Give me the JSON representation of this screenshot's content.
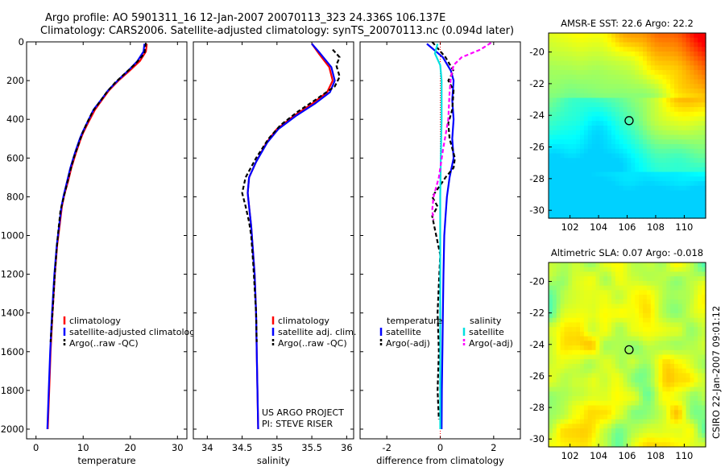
{
  "header": {
    "line1": "Argo profile: AO 5901311_16 12-Jan-2007 20070113_323 24.336S 106.137E",
    "line2": "Climatology: CARS2006. Satellite-adjusted climatology: synTS_20070113.nc (0.094d later)"
  },
  "side_text": "CSIRO 22-Jan-2007 09:01:12",
  "colors": {
    "climatology": "#ff0000",
    "satellite": "#0000ff",
    "argo": "#000000",
    "salinity_satellite": "#00e0e0",
    "salinity_argo": "#ff00ff"
  },
  "chart_data": [
    {
      "type": "line",
      "panel": "temperature",
      "xlabel": "temperature",
      "xlim": [
        -2,
        32
      ],
      "ylim": [
        2050,
        0
      ],
      "xticks": [
        "0",
        "10",
        "20",
        "30"
      ],
      "yticks": [
        "0",
        "200",
        "400",
        "600",
        "800",
        "1000",
        "1200",
        "1400",
        "1600",
        "1800",
        "2000"
      ],
      "legend_loc": "lower-right",
      "series": [
        {
          "name": "climatology",
          "color": "#ff0000",
          "dash": "",
          "points": [
            [
              23.5,
              10
            ],
            [
              23.3,
              50
            ],
            [
              22,
              100
            ],
            [
              19.8,
              150
            ],
            [
              17.5,
              200
            ],
            [
              15.5,
              250
            ],
            [
              14,
              300
            ],
            [
              12.5,
              350
            ],
            [
              11,
              420
            ],
            [
              10,
              470
            ],
            [
              9.5,
              500
            ],
            [
              8.5,
              570
            ],
            [
              7.5,
              650
            ],
            [
              6.8,
              720
            ],
            [
              6,
              790
            ],
            [
              5.5,
              850
            ],
            [
              5,
              950
            ],
            [
              4.5,
              1050
            ],
            [
              4,
              1200
            ],
            [
              3.5,
              1400
            ],
            [
              3.1,
              1600
            ],
            [
              2.8,
              1800
            ],
            [
              2.5,
              2000
            ]
          ]
        },
        {
          "name": "satellite-adjusted climatology",
          "color": "#0000ff",
          "dash": "",
          "points": [
            [
              23,
              10
            ],
            [
              22.8,
              50
            ],
            [
              21.5,
              100
            ],
            [
              19.5,
              150
            ],
            [
              17.3,
              200
            ],
            [
              15.3,
              250
            ],
            [
              13.8,
              300
            ],
            [
              12.2,
              350
            ],
            [
              10.8,
              420
            ],
            [
              9.8,
              470
            ],
            [
              9.3,
              500
            ],
            [
              8.3,
              570
            ],
            [
              7.3,
              650
            ],
            [
              6.6,
              720
            ],
            [
              5.9,
              790
            ],
            [
              5.4,
              850
            ],
            [
              4.9,
              950
            ],
            [
              4.4,
              1050
            ],
            [
              3.9,
              1200
            ],
            [
              3.4,
              1400
            ],
            [
              3,
              1600
            ],
            [
              2.7,
              1800
            ],
            [
              2.4,
              2000
            ]
          ]
        },
        {
          "name": "Argo(..raw -QC)",
          "color": "#000000",
          "dash": "5,3",
          "points": [
            [
              23.3,
              5
            ],
            [
              23,
              60
            ],
            [
              21.2,
              110
            ],
            [
              19,
              160
            ],
            [
              16.8,
              210
            ],
            [
              15,
              260
            ],
            [
              13.5,
              310
            ],
            [
              12,
              360
            ],
            [
              10.6,
              430
            ],
            [
              9.7,
              480
            ],
            [
              9,
              530
            ],
            [
              8,
              600
            ],
            [
              7.1,
              680
            ],
            [
              6.3,
              760
            ],
            [
              5.6,
              830
            ],
            [
              5.2,
              870
            ],
            [
              4.8,
              960
            ],
            [
              4.4,
              1060
            ],
            [
              4,
              1200
            ],
            [
              3.5,
              1400
            ],
            [
              3.1,
              1550
            ]
          ]
        }
      ],
      "legend": [
        "climatology",
        "satellite-adjusted climatology",
        "Argo(..raw -QC)"
      ]
    },
    {
      "type": "line",
      "panel": "salinity",
      "xlabel": "salinity",
      "xlim": [
        33.8,
        36.1
      ],
      "ylim": [
        2050,
        0
      ],
      "xticks": [
        "34",
        "34.5",
        "35",
        "35.5",
        "36"
      ],
      "legend_loc": "lower-right",
      "annotation": [
        "US ARGO PROJECT",
        "PI: STEVE RISER"
      ],
      "series": [
        {
          "name": "climatology",
          "color": "#ff0000",
          "dash": "",
          "points": [
            [
              35.5,
              10
            ],
            [
              35.6,
              60
            ],
            [
              35.75,
              130
            ],
            [
              35.8,
              200
            ],
            [
              35.72,
              260
            ],
            [
              35.5,
              320
            ],
            [
              35.25,
              380
            ],
            [
              35,
              450
            ],
            [
              34.85,
              520
            ],
            [
              34.7,
              620
            ],
            [
              34.6,
              700
            ],
            [
              34.58,
              780
            ],
            [
              34.6,
              850
            ],
            [
              34.63,
              950
            ],
            [
              34.65,
              1050
            ],
            [
              34.68,
              1200
            ],
            [
              34.7,
              1400
            ],
            [
              34.71,
              1600
            ],
            [
              34.72,
              1800
            ],
            [
              34.73,
              2000
            ]
          ]
        },
        {
          "name": "satellite adj. clim.",
          "color": "#0000ff",
          "dash": "",
          "points": [
            [
              35.5,
              10
            ],
            [
              35.62,
              60
            ],
            [
              35.78,
              130
            ],
            [
              35.83,
              200
            ],
            [
              35.76,
              260
            ],
            [
              35.54,
              320
            ],
            [
              35.28,
              380
            ],
            [
              35.02,
              450
            ],
            [
              34.86,
              520
            ],
            [
              34.7,
              620
            ],
            [
              34.6,
              700
            ],
            [
              34.58,
              780
            ],
            [
              34.6,
              850
            ],
            [
              34.63,
              950
            ],
            [
              34.65,
              1050
            ],
            [
              34.68,
              1200
            ],
            [
              34.7,
              1400
            ],
            [
              34.71,
              1600
            ],
            [
              34.72,
              1800
            ],
            [
              34.73,
              2000
            ]
          ]
        },
        {
          "name": "Argo(..raw -QC)",
          "color": "#000000",
          "dash": "5,3",
          "points": [
            [
              35.8,
              40
            ],
            [
              35.9,
              80
            ],
            [
              35.85,
              120
            ],
            [
              35.9,
              180
            ],
            [
              35.83,
              230
            ],
            [
              35.55,
              300
            ],
            [
              35.3,
              360
            ],
            [
              35.05,
              430
            ],
            [
              34.88,
              500
            ],
            [
              34.7,
              600
            ],
            [
              34.55,
              700
            ],
            [
              34.5,
              780
            ],
            [
              34.55,
              850
            ],
            [
              34.6,
              930
            ],
            [
              34.63,
              1000
            ],
            [
              34.66,
              1150
            ],
            [
              34.7,
              1400
            ],
            [
              34.71,
              1550
            ]
          ]
        }
      ],
      "legend": [
        "climatology",
        "satellite adj. clim.",
        "Argo(..raw -QC)"
      ]
    },
    {
      "type": "line",
      "panel": "difference",
      "xlabel": "difference from climatology",
      "xlim": [
        -3,
        3
      ],
      "ylim": [
        2050,
        0
      ],
      "xticks": [
        "-2",
        "0",
        "2"
      ],
      "legend_loc": "lower-center",
      "legend_headers": [
        "temperature",
        "salinity"
      ],
      "series": [
        {
          "name": "temperature satellite",
          "color": "#0000ff",
          "dash": "",
          "points": [
            [
              -0.5,
              10
            ],
            [
              0.1,
              80
            ],
            [
              0.4,
              150
            ],
            [
              0.5,
              200
            ],
            [
              0.45,
              300
            ],
            [
              0.5,
              400
            ],
            [
              0.45,
              500
            ],
            [
              0.5,
              600
            ],
            [
              0.35,
              700
            ],
            [
              0.25,
              800
            ],
            [
              0.2,
              900
            ],
            [
              0.15,
              1000
            ],
            [
              0.12,
              1200
            ],
            [
              0.1,
              1400
            ],
            [
              0.08,
              1600
            ],
            [
              0.06,
              1800
            ],
            [
              0.05,
              2000
            ]
          ]
        },
        {
          "name": "temperature Argo(-adj)",
          "color": "#000000",
          "dash": "5,3",
          "points": [
            [
              -0.3,
              0
            ],
            [
              0.2,
              80
            ],
            [
              0.5,
              150
            ],
            [
              0.3,
              200
            ],
            [
              0.5,
              250
            ],
            [
              0.45,
              350
            ],
            [
              0.3,
              420
            ],
            [
              0.35,
              500
            ],
            [
              0.55,
              600
            ],
            [
              0.5,
              650
            ],
            [
              0.2,
              700
            ],
            [
              -0.1,
              760
            ],
            [
              -0.3,
              800
            ],
            [
              -0.1,
              850
            ],
            [
              -0.3,
              900
            ],
            [
              -0.15,
              1000
            ],
            [
              0,
              1100
            ],
            [
              -0.05,
              1250
            ],
            [
              -0.1,
              1400
            ],
            [
              -0.05,
              1600
            ],
            [
              -0.1,
              1800
            ],
            [
              -0.05,
              1950
            ]
          ]
        },
        {
          "name": "salinity satellite",
          "color": "#00e0e0",
          "dash": "",
          "points": [
            [
              -0.1,
              10
            ],
            [
              -0.2,
              60
            ],
            [
              0,
              120
            ],
            [
              0.05,
              200
            ],
            [
              0.05,
              400
            ],
            [
              0.02,
              600
            ],
            [
              0,
              800
            ],
            [
              0,
              1000
            ],
            [
              0,
              1300
            ],
            [
              0,
              1600
            ],
            [
              0,
              2000
            ]
          ]
        },
        {
          "name": "salinity Argo(-adj)",
          "color": "#ff00ff",
          "dash": "5,3",
          "points": [
            [
              1.9,
              5
            ],
            [
              1.5,
              40
            ],
            [
              0.8,
              80
            ],
            [
              0.5,
              120
            ],
            [
              0.4,
              180
            ],
            [
              0.35,
              260
            ],
            [
              0.3,
              400
            ],
            [
              0.1,
              560
            ],
            [
              -0.05,
              700
            ],
            [
              -0.25,
              800
            ],
            [
              -0.3,
              870
            ],
            [
              -0.25,
              920
            ]
          ]
        }
      ],
      "legend": [
        "satellite",
        "Argo(-adj)",
        "satellite",
        "Argo(-adj)"
      ]
    },
    {
      "type": "heatmap",
      "panel": "sst-map",
      "title": "AMSR-E SST: 22.6 Argo: 22.2",
      "xlim": [
        100.5,
        111.5
      ],
      "ylim": [
        -30.5,
        -18.8
      ],
      "xticks": [
        "102",
        "104",
        "106",
        "108",
        "110"
      ],
      "yticks": [
        "-20",
        "-22",
        "-24",
        "-26",
        "-28",
        "-30"
      ],
      "marker": {
        "lon": 106.137,
        "lat": -24.336
      }
    },
    {
      "type": "heatmap",
      "panel": "sla-map",
      "title": "Altimetric SLA: 0.07 Argo: -0.018",
      "xlim": [
        100.5,
        111.5
      ],
      "ylim": [
        -30.5,
        -18.8
      ],
      "xticks": [
        "102",
        "104",
        "106",
        "108",
        "110"
      ],
      "yticks": [
        "-20",
        "-22",
        "-24",
        "-26",
        "-28",
        "-30"
      ],
      "marker": {
        "lon": 106.137,
        "lat": -24.336
      }
    }
  ]
}
